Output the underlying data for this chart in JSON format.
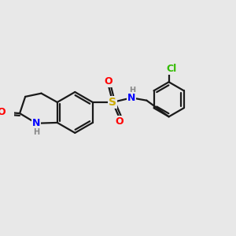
{
  "background_color": "#e8e8e8",
  "bond_color": "#1a1a1a",
  "bond_width": 1.6,
  "atom_colors": {
    "O": "#ff0000",
    "N": "#0000ff",
    "S": "#ccaa00",
    "Cl": "#33bb00",
    "H_gray": "#888888"
  },
  "font_size_atom": 9,
  "font_size_small": 7,
  "font_size_cl": 9
}
